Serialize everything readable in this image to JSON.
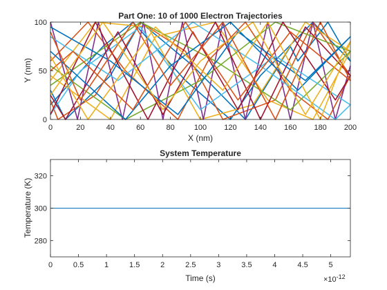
{
  "chart_data": [
    {
      "type": "line",
      "title": "Part One: 10 of 1000 Electron Trajectories",
      "xlabel": "X (nm)",
      "ylabel": "Y (nm)",
      "xlim": [
        0,
        200
      ],
      "ylim": [
        0,
        100
      ],
      "xticks": [
        "0",
        "20",
        "40",
        "60",
        "80",
        "100",
        "120",
        "140",
        "160",
        "180",
        "200"
      ],
      "yticks": [
        "0",
        "50",
        "100"
      ],
      "grid": false,
      "series": [
        {
          "color": "#0072BD",
          "x": [
            0,
            35,
            55,
            90,
            120,
            140,
            175,
            200,
            185,
            165,
            160,
            130,
            95,
            60,
            40,
            10,
            0
          ],
          "y": [
            15,
            75,
            100,
            40,
            0,
            45,
            100,
            60,
            100,
            60,
            75,
            0,
            55,
            100,
            45,
            0,
            30
          ]
        },
        {
          "color": "#D95319",
          "x": [
            0,
            25,
            50,
            85,
            105,
            130,
            160,
            185,
            200,
            175,
            150,
            115,
            90,
            60,
            30,
            5,
            0
          ],
          "y": [
            60,
            100,
            50,
            0,
            60,
            100,
            30,
            0,
            45,
            100,
            20,
            0,
            70,
            100,
            25,
            0,
            20
          ]
        },
        {
          "color": "#EDB120",
          "x": [
            0,
            40,
            70,
            110,
            145,
            175,
            200,
            170,
            135,
            100,
            65,
            30,
            0
          ],
          "y": [
            45,
            0,
            85,
            100,
            20,
            0,
            70,
            100,
            15,
            0,
            95,
            100,
            40
          ]
        },
        {
          "color": "#7E2F8E",
          "x": [
            0,
            18,
            32,
            48,
            62,
            75,
            88,
            102,
            115,
            130,
            145,
            160,
            175,
            190,
            200
          ],
          "y": [
            100,
            0,
            100,
            0,
            100,
            0,
            100,
            0,
            100,
            0,
            100,
            0,
            100,
            0,
            55
          ]
        },
        {
          "color": "#77AC30",
          "x": [
            0,
            60,
            110,
            160,
            200,
            150,
            100,
            50,
            0
          ],
          "y": [
            35,
            100,
            60,
            10,
            70,
            100,
            40,
            0,
            55
          ]
        },
        {
          "color": "#4DBEEE",
          "x": [
            0,
            45,
            95,
            140,
            190,
            200,
            150,
            100,
            60,
            20,
            0
          ],
          "y": [
            85,
            40,
            100,
            55,
            0,
            15,
            65,
            10,
            95,
            50,
            5
          ]
        },
        {
          "color": "#A2142F",
          "x": [
            0,
            30,
            65,
            95,
            125,
            155,
            190,
            200,
            170,
            140,
            110,
            75,
            45,
            10,
            0
          ],
          "y": [
            5,
            100,
            0,
            90,
            10,
            100,
            20,
            45,
            95,
            0,
            100,
            5,
            90,
            0,
            25
          ]
        },
        {
          "color": "#0072BD",
          "x": [
            0,
            50,
            80,
            120,
            165,
            200,
            170,
            125,
            85,
            40,
            0
          ],
          "y": [
            70,
            0,
            55,
            100,
            30,
            85,
            40,
            90,
            5,
            60,
            95
          ]
        },
        {
          "color": "#D95319",
          "x": [
            0,
            20,
            55,
            80,
            115,
            150,
            180,
            200,
            160,
            125,
            90,
            55,
            15,
            0
          ],
          "y": [
            90,
            20,
            100,
            35,
            100,
            0,
            100,
            40,
            90,
            20,
            100,
            10,
            70,
            50
          ]
        },
        {
          "color": "#EDB120",
          "x": [
            0,
            35,
            75,
            100,
            135,
            170,
            200,
            180,
            145,
            115,
            70,
            25,
            0
          ],
          "y": [
            25,
            100,
            10,
            60,
            100,
            5,
            80,
            0,
            100,
            30,
            95,
            0,
            65
          ]
        }
      ]
    },
    {
      "type": "line",
      "title": "System Temperature",
      "xlabel": "Time (s)",
      "ylabel": "Temperature (K)",
      "xlim": [
        0,
        5.35
      ],
      "ylim": [
        270,
        330
      ],
      "xticks": [
        "0",
        "0.5",
        "1",
        "1.5",
        "2",
        "2.5",
        "3",
        "3.5",
        "4",
        "4.5",
        "5"
      ],
      "yticks": [
        "280",
        "300",
        "320"
      ],
      "x_exponent": "×10",
      "x_exponent_power": "-12",
      "grid": false,
      "series": [
        {
          "color": "#0072BD",
          "x": [
            0,
            5.35
          ],
          "y": [
            300,
            300
          ]
        }
      ]
    }
  ]
}
